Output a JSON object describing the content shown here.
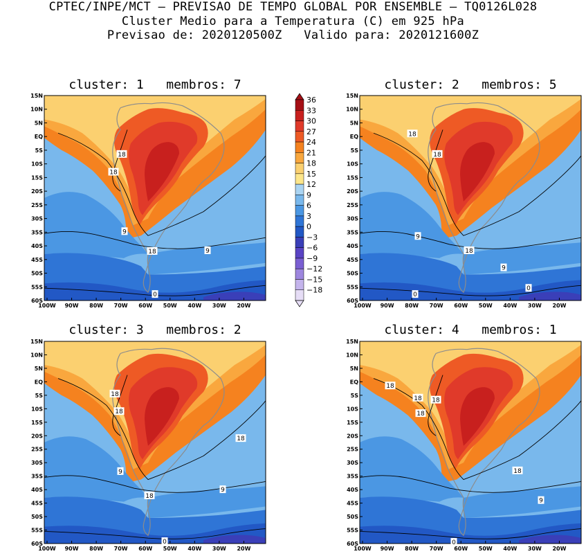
{
  "header": {
    "line1": "CPTEC/INPE/MCT – PREVISAO DE TEMPO GLOBAL POR ENSEMBLE – TQ0126L028",
    "line2": "Cluster Medio para a Temperatura (C) em 925 hPa",
    "line3": "Previsao de: 2020120500Z   Valido para: 2020121600Z"
  },
  "axes": {
    "lat_labels": [
      "15N",
      "10N",
      "5N",
      "EQ",
      "5S",
      "10S",
      "15S",
      "20S",
      "25S",
      "30S",
      "35S",
      "40S",
      "45S",
      "50S",
      "55S",
      "60S"
    ],
    "lon_labels": [
      "100W",
      "90W",
      "80W",
      "70W",
      "60W",
      "50W",
      "40W",
      "30W",
      "20W"
    ]
  },
  "colorbar": {
    "labels": [
      "36",
      "33",
      "30",
      "27",
      "24",
      "21",
      "18",
      "15",
      "12",
      "9",
      "6",
      "3",
      "0",
      "−3",
      "−6",
      "−9",
      "−12",
      "−15",
      "−18"
    ],
    "colors": [
      "#a50f15",
      "#c8201e",
      "#e03a2a",
      "#ee5a25",
      "#f5821f",
      "#f9a73e",
      "#fbd070",
      "#fde68a",
      "#aad4f2",
      "#79b8ec",
      "#4b97e3",
      "#2f75d6",
      "#2258c5",
      "#3a3fb8",
      "#5a44c4",
      "#7a5fd2",
      "#9d86de",
      "#c4b4ec",
      "#e6ddf6"
    ]
  },
  "panels": [
    {
      "title": "cluster: 1   membros: 7",
      "labels": [
        "18",
        "18",
        "9",
        "18",
        "9",
        "0"
      ]
    },
    {
      "title": "cluster: 2   membros: 5",
      "labels": [
        "18",
        "18",
        "9",
        "18",
        "9",
        "0",
        "0"
      ]
    },
    {
      "title": "cluster: 3   membros: 2",
      "labels": [
        "18",
        "18",
        "18",
        "9",
        "18",
        "9",
        "0"
      ]
    },
    {
      "title": "cluster: 4   membros: 1",
      "labels": [
        "18",
        "18",
        "18",
        "18",
        "18",
        "9",
        "0"
      ]
    }
  ]
}
